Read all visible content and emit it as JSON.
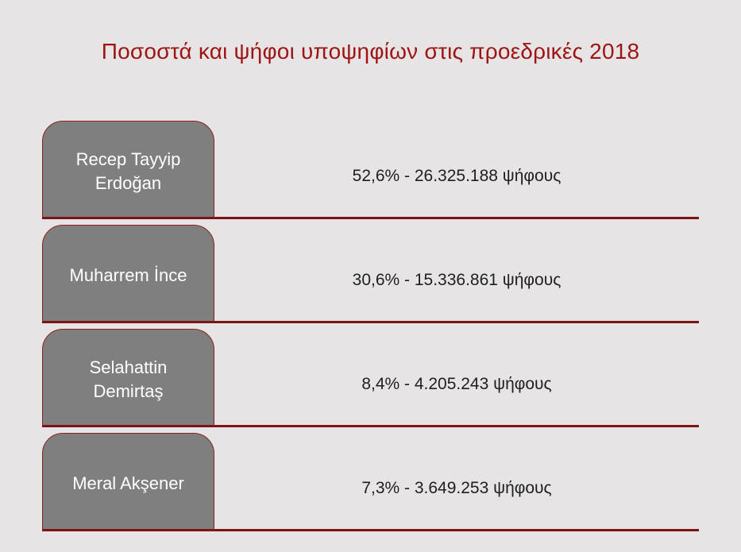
{
  "title": "Ποσοστά και ψήφοι υποψηφίων στις προεδρικές 2018",
  "colors": {
    "background": "#e6e4e4",
    "title-red": "#9e1414",
    "line-red": "#7c1315",
    "box-border-red": "#8a2320",
    "box-gray": "#7f7f7f",
    "box-text": "#ffffff",
    "value-text": "#1f1f1f"
  },
  "rows": [
    {
      "name": "Recep Tayyip Erdoğan",
      "value": "52,6% - 26.325.188 ψήφους"
    },
    {
      "name": "Muharrem İnce",
      "value": "30,6% - 15.336.861 ψήφους"
    },
    {
      "name": "Selahattin Demirtaş",
      "value": "8,4% - 4.205.243 ψήφους"
    },
    {
      "name": "Meral Akşener",
      "value": "7,3% - 3.649.253 ψήφους"
    }
  ],
  "chart_data": {
    "type": "table",
    "title": "Ποσοστά και ψήφοι υποψηφίων στις προεδρικές 2018",
    "candidates": [
      "Recep Tayyip Erdoğan",
      "Muharrem İnce",
      "Selahattin Demirtaş",
      "Meral Akşener"
    ],
    "percent": [
      52.6,
      30.6,
      8.4,
      7.3
    ],
    "votes": [
      26325188,
      15336861,
      4205243,
      3649253
    ],
    "value_labels": [
      "52,6% - 26.325.188 ψήφους",
      "30,6% - 15.336.861 ψήφους",
      "8,4% - 4.205.243 ψήφους",
      "7,3% - 3.649.253 ψήφους"
    ],
    "legend_position": "none",
    "grid": false
  }
}
